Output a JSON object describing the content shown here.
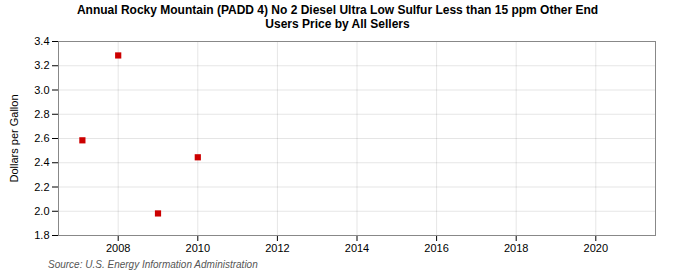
{
  "chart_data": {
    "type": "scatter",
    "title": "Annual Rocky Mountain (PADD 4) No 2 Diesel Ultra Low Sulfur Less than 15 ppm Other End\nUsers Price by All Sellers",
    "ylabel": "Dollars per Gallon",
    "source": "Source: U.S. Energy Information Administration",
    "x": [
      2007.1,
      2008.0,
      2009.0,
      2010.0
    ],
    "values": [
      2.585,
      3.285,
      1.982,
      2.445
    ],
    "color": "#cc0000",
    "marker": "square",
    "xlim": [
      2006.5,
      2021.5
    ],
    "xticks": [
      2008,
      2010,
      2012,
      2014,
      2016,
      2018,
      2020
    ],
    "ylim": [
      1.8,
      3.4
    ],
    "yticks": [
      1.8,
      {
        "value": 2.0,
        "label": "2.0"
      },
      2.2,
      2.4,
      2.6,
      2.8,
      {
        "value": 3.0,
        "label": "3.0"
      },
      3.2,
      3.4
    ],
    "grid": true
  }
}
